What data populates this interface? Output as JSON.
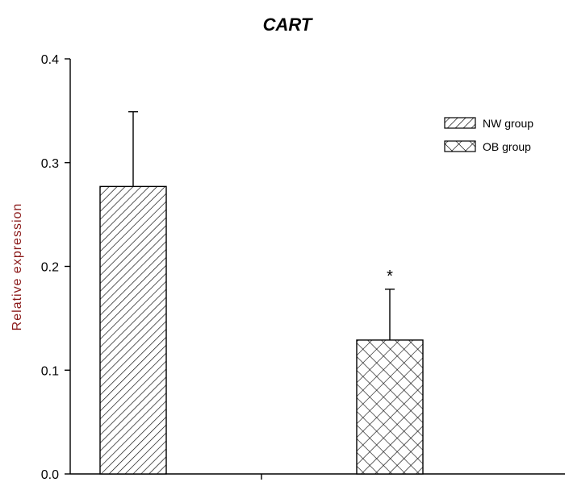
{
  "chart_data": {
    "type": "bar",
    "title": "CART",
    "xlabel": "",
    "ylabel": "Relative expression",
    "ylim": [
      0,
      0.4
    ],
    "yticks": [
      "0.0",
      "0.1",
      "0.2",
      "0.3",
      "0.4"
    ],
    "categories": [
      "NW group",
      "OB group"
    ],
    "series": [
      {
        "name": "NW group",
        "value": 0.277,
        "error": 0.072,
        "pattern": "diagonal-hatch"
      },
      {
        "name": "OB group",
        "value": 0.129,
        "error": 0.049,
        "pattern": "cross-hatch"
      }
    ],
    "annotations": [
      {
        "category": "OB group",
        "text": "*"
      }
    ],
    "legend": {
      "position": "top-right"
    },
    "grid": false,
    "colors": {
      "bar_fill": "#ffffff",
      "bar_stroke": "#000000",
      "ylabel": "#8b1a1a"
    }
  }
}
